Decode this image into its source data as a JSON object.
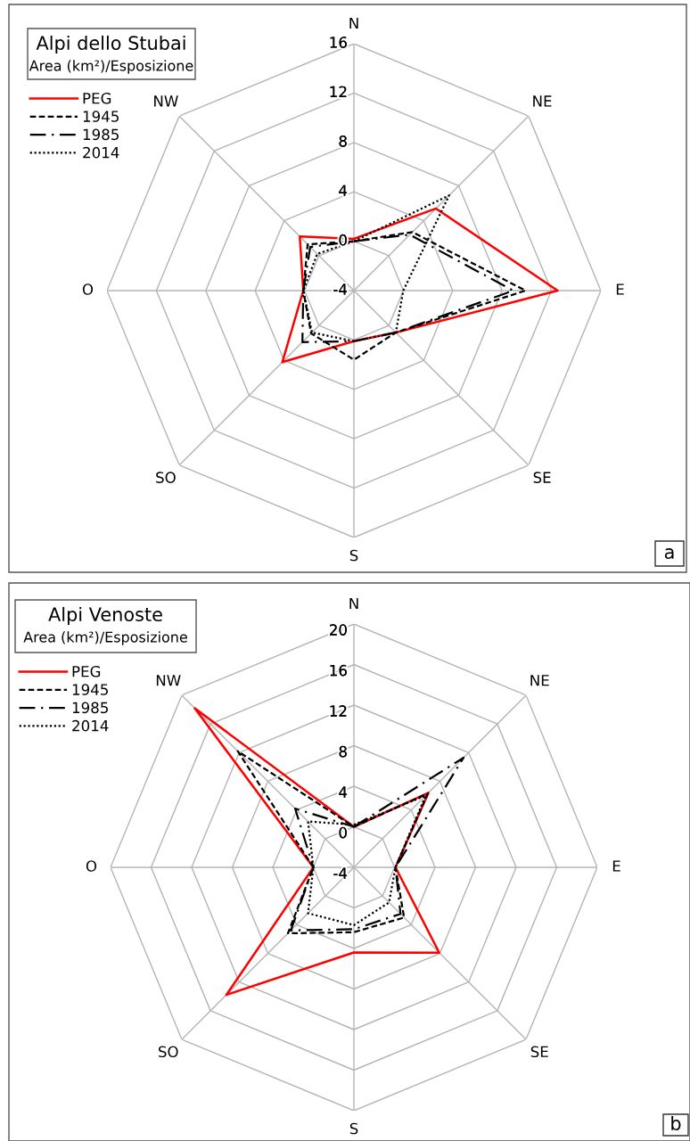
{
  "chart_data": [
    {
      "type": "radar",
      "title": "Alpi dello Stubai",
      "subtitle": "Area (km²)/Esposizione",
      "annotations": [
        "a"
      ],
      "categories": [
        "N",
        "NE",
        "E",
        "SE",
        "S",
        "SO",
        "O",
        "NW"
      ],
      "ylim": [
        -4,
        16
      ],
      "yticks": [
        -4,
        0,
        4,
        8,
        12,
        16
      ],
      "grid": true,
      "legend": "top left",
      "marker": "none",
      "series": [
        {
          "name": "PEG",
          "color": "#ff0000",
          "line_style": "solid",
          "values": [
            0.2,
            5.4,
            12.5,
            0.8,
            0.1,
            4.2,
            0.1,
            2.2
          ]
        },
        {
          "name": "1945",
          "color": "#000000",
          "line_style": "dashed",
          "values": [
            0,
            2.7,
            9.9,
            0.8,
            1.6,
            0.9,
            0.1,
            1.3
          ]
        },
        {
          "name": "1985",
          "color": "#000000",
          "line_style": "dashdot",
          "values": [
            0,
            2.4,
            8.9,
            0.8,
            0.1,
            1.9,
            0.1,
            1.0
          ]
        },
        {
          "name": "2014",
          "color": "#000000",
          "line_style": "dotted",
          "values": [
            0,
            6.9,
            0,
            0.8,
            0.1,
            0.8,
            0.1,
            0.2
          ]
        }
      ]
    },
    {
      "type": "radar",
      "title": "Alpi Venoste",
      "subtitle": "Area (km²)/Esposizione",
      "annotations": [
        "b"
      ],
      "categories": [
        "N",
        "NE",
        "E",
        "SE",
        "S",
        "SO",
        "O",
        "NW"
      ],
      "ylim": [
        -4,
        20
      ],
      "yticks": [
        -4,
        0,
        4,
        8,
        12,
        16,
        20
      ],
      "grid": true,
      "legend": "top left",
      "marker": "none",
      "series": [
        {
          "name": "PEG",
          "color": "#ff0000",
          "line_style": "solid",
          "values": [
            0,
            6.4,
            0.1,
            7.9,
            4.4,
            13.8,
            0,
            18.2
          ]
        },
        {
          "name": "1945",
          "color": "#000000",
          "line_style": "dashed",
          "values": [
            0,
            6.3,
            0.1,
            3.0,
            2.4,
            5.2,
            0,
            12.2
          ]
        },
        {
          "name": "1985",
          "color": "#000000",
          "line_style": "dashdot",
          "values": [
            0,
            11.3,
            0.1,
            2.5,
            2.1,
            4.8,
            0,
            4.2
          ]
        },
        {
          "name": "2014",
          "color": "#000000",
          "line_style": "dotted",
          "values": [
            0.2,
            6.0,
            0.1,
            0.9,
            1.7,
            2.4,
            0,
            2.4
          ]
        }
      ]
    }
  ]
}
